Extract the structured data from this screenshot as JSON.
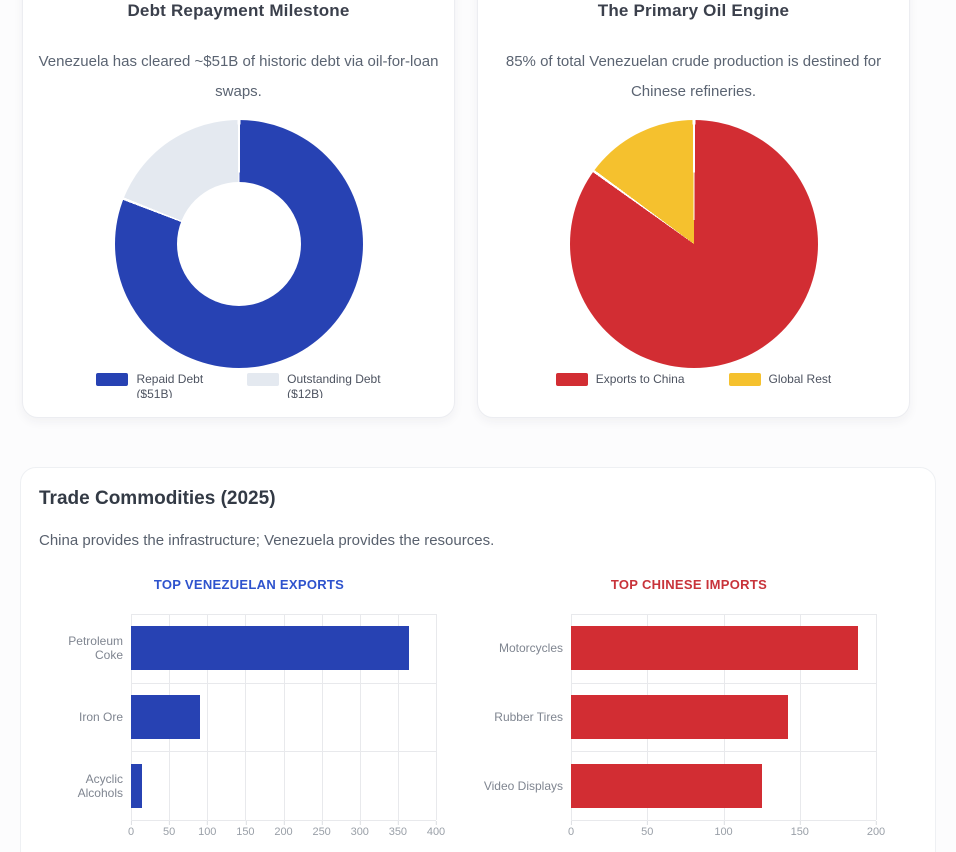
{
  "page": {
    "cards": {
      "debt": {
        "title": "Debt Repayment Milestone",
        "subtitle": "Venezuela has cleared ~$51B of historic debt via oil-for-loan swaps.",
        "legend": [
          {
            "label": "Repaid Debt",
            "sublabel": "($51B)",
            "color": "#2742b3"
          },
          {
            "label": "Outstanding Debt",
            "sublabel": "($12B)",
            "color": "#e4e9f0"
          }
        ]
      },
      "oil": {
        "title": "The Primary Oil Engine",
        "subtitle": "85% of total Venezuelan crude production is destined for Chinese refineries.",
        "legend": [
          {
            "label": "Exports to China",
            "color": "#d22d33"
          },
          {
            "label": "Global Rest",
            "color": "#f5c12e"
          }
        ]
      },
      "trade": {
        "title": "Trade Commodities (2025)",
        "subtitle": "China provides the infrastructure; Venezuela provides the resources.",
        "left_heading": "TOP VENEZUELAN EXPORTS",
        "right_heading": "TOP CHINESE IMPORTS",
        "left_heading_color": "#2e53cd",
        "right_heading_color": "#c8333a"
      }
    }
  },
  "chart_data": [
    {
      "id": "debt-donut",
      "type": "pie",
      "variant": "donut",
      "title": "Debt Repayment Milestone",
      "labels": [
        "Repaid Debt ($51B)",
        "Outstanding Debt ($12B)"
      ],
      "values": [
        51,
        12
      ],
      "colors": [
        "#2742b3",
        "#e4e9f0"
      ],
      "legend_position": "bottom"
    },
    {
      "id": "oil-pie",
      "type": "pie",
      "title": "The Primary Oil Engine",
      "labels": [
        "Exports to China",
        "Global Rest"
      ],
      "values": [
        85,
        15
      ],
      "colors": [
        "#d22d33",
        "#f5c12e"
      ],
      "legend_position": "bottom"
    },
    {
      "id": "venezuelan-exports",
      "type": "bar",
      "orientation": "horizontal",
      "title": "TOP VENEZUELAN EXPORTS",
      "categories": [
        "Petroleum Coke",
        "Iron Ore",
        "Acyclic Alcohols"
      ],
      "values": [
        365,
        90,
        15
      ],
      "color": "#2742b3",
      "xlim": [
        0,
        400
      ],
      "xticks": [
        0,
        50,
        100,
        150,
        200,
        250,
        300,
        350,
        400
      ],
      "grid": true
    },
    {
      "id": "chinese-imports",
      "type": "bar",
      "orientation": "horizontal",
      "title": "TOP CHINESE IMPORTS",
      "categories": [
        "Motorcycles",
        "Rubber Tires",
        "Video Displays"
      ],
      "values": [
        188,
        142,
        125
      ],
      "color": "#d22d33",
      "xlim": [
        0,
        200
      ],
      "xticks": [
        0,
        50,
        100,
        150,
        200
      ],
      "grid": true
    }
  ]
}
